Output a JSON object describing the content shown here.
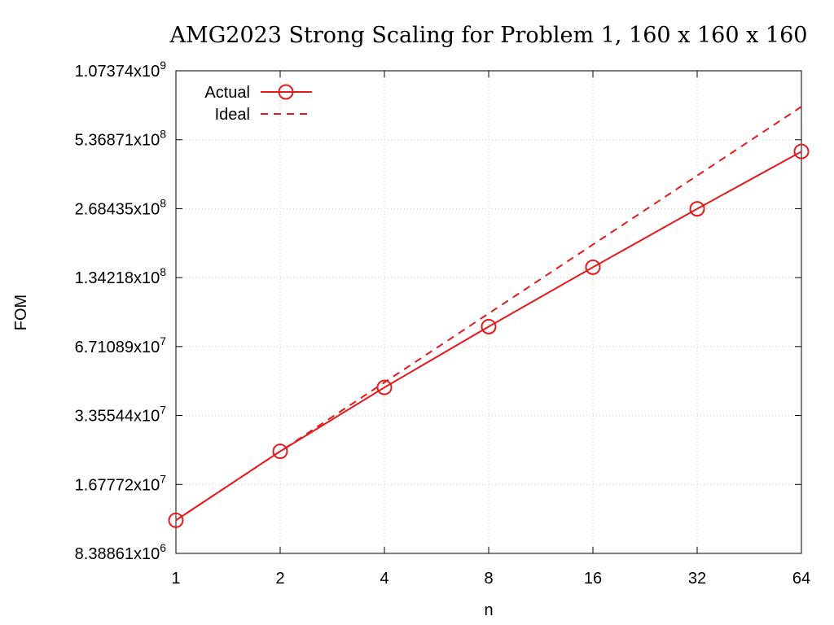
{
  "chart_data": {
    "type": "line",
    "title": "AMG2023 Strong Scaling for Problem 1, 160 x 160 x 160",
    "xlabel": "n",
    "ylabel": "FOM",
    "x_scale": "log2",
    "y_scale": "log2",
    "xlim": [
      1,
      64
    ],
    "ylim": [
      8388608,
      1073741824
    ],
    "x_ticks": [
      {
        "value": 1,
        "label": "1"
      },
      {
        "value": 2,
        "label": "2"
      },
      {
        "value": 4,
        "label": "4"
      },
      {
        "value": 8,
        "label": "8"
      },
      {
        "value": 16,
        "label": "16"
      },
      {
        "value": 32,
        "label": "32"
      },
      {
        "value": 64,
        "label": "64"
      }
    ],
    "y_ticks": [
      {
        "value": 8388608,
        "mantissa": "8.38861x10",
        "exponent": "6"
      },
      {
        "value": 16777216,
        "mantissa": "1.67772x10",
        "exponent": "7"
      },
      {
        "value": 33554432,
        "mantissa": "3.35544x10",
        "exponent": "7"
      },
      {
        "value": 67108864,
        "mantissa": "6.71089x10",
        "exponent": "7"
      },
      {
        "value": 134217728,
        "mantissa": "1.34218x10",
        "exponent": "8"
      },
      {
        "value": 268435456,
        "mantissa": "2.68435x10",
        "exponent": "8"
      },
      {
        "value": 536870912,
        "mantissa": "5.36871x10",
        "exponent": "8"
      },
      {
        "value": 1073741824,
        "mantissa": "1.07374x10",
        "exponent": "9"
      }
    ],
    "grid": true,
    "legend_position": "top-left",
    "series": [
      {
        "name": "Actual",
        "style": "solid line with open circles",
        "color": "#e41a1c",
        "x": [
          1,
          2,
          4,
          8,
          16,
          32,
          64
        ],
        "y": [
          11700000,
          23400000,
          44500000,
          82000000,
          149000000,
          268000000,
          477000000
        ]
      },
      {
        "name": "Ideal",
        "style": "dashed line",
        "color": "#e41a1c",
        "x": [
          1,
          2,
          4,
          8,
          16,
          32,
          64
        ],
        "y": [
          11700000,
          23400000,
          46800000,
          93600000,
          187200000,
          374400000,
          748800000
        ]
      }
    ]
  }
}
